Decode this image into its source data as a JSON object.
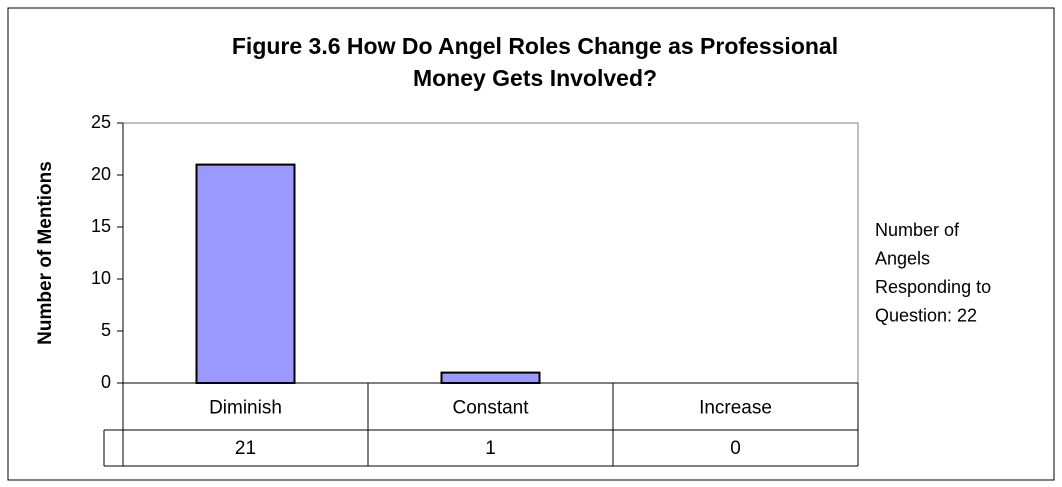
{
  "chart_data": {
    "type": "bar",
    "title": [
      "Figure 3.6 How Do Angel Roles Change as Professional",
      "Money Gets Involved?"
    ],
    "y_label": "Number of Mentions",
    "categories": [
      "Diminish",
      "Constant",
      "Increase"
    ],
    "values": [
      21,
      1,
      0
    ],
    "color": "#9999ff",
    "ylim": [
      0,
      25
    ],
    "yticks": [
      0,
      5,
      10,
      15,
      20,
      25
    ],
    "grid": false,
    "data_table": true,
    "annotation": [
      "Number of",
      "Angels",
      "Responding to",
      "Question: 22"
    ]
  }
}
